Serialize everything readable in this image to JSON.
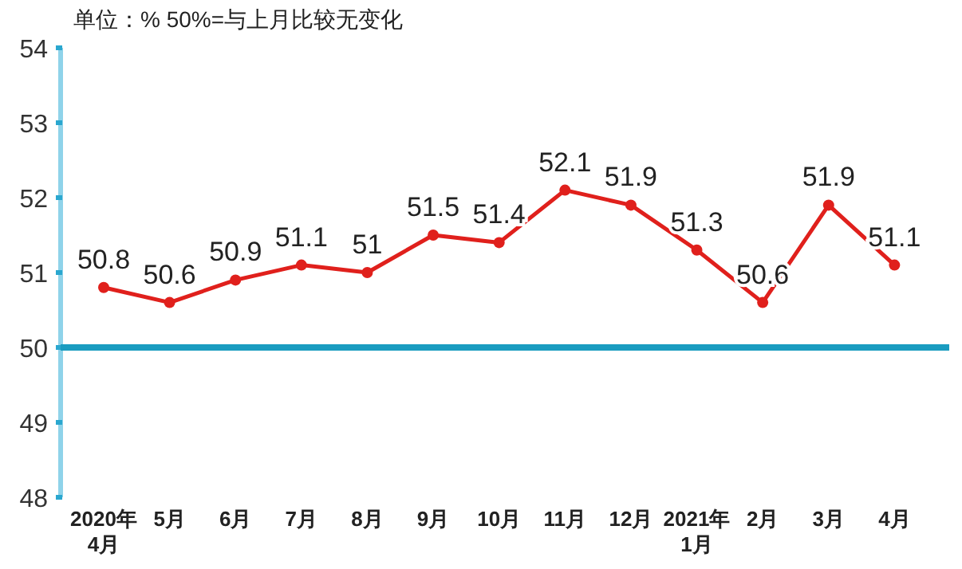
{
  "chart_data": {
    "type": "line",
    "title": "单位：% 50%=与上月比较无变化",
    "categories": [
      "2020年\n4月",
      "5月",
      "6月",
      "7月",
      "8月",
      "9月",
      "10月",
      "11月",
      "12月",
      "2021年\n1月",
      "2月",
      "3月",
      "4月"
    ],
    "values": [
      50.8,
      50.6,
      50.9,
      51.1,
      51.0,
      51.5,
      51.4,
      52.1,
      51.9,
      51.3,
      50.6,
      51.9,
      51.1
    ],
    "color": "#e0201c",
    "marker": "circle",
    "line_style": "solid",
    "data_labels": true,
    "ylim": [
      48,
      54
    ],
    "yticks": [
      48,
      49,
      50,
      51,
      52,
      53,
      54
    ],
    "ref_lines": [
      {
        "axis": "y",
        "value": 50,
        "color": "#1a9cc0"
      }
    ]
  }
}
